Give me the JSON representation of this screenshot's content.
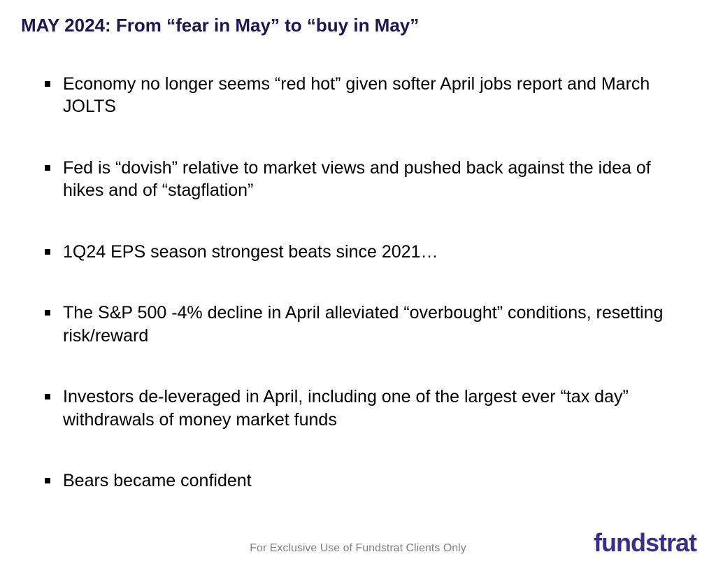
{
  "slide": {
    "title": "MAY 2024: From “fear in May” to “buy in May”",
    "title_color": "#1e1650",
    "title_fontsize": 26,
    "title_fontweight": 700,
    "background_color": "#ffffff",
    "bullets": [
      "Economy no longer seems “red hot” given softer April jobs report and March JOLTS",
      "Fed is “dovish” relative to market views and pushed back against the idea of hikes and of “stagflation”",
      "1Q24 EPS season strongest beats since 2021…",
      "The S&P 500 -4% decline in April alleviated “overbought” conditions, resetting risk/reward",
      "Investors de-leveraged in April, including one of the largest ever “tax day” withdrawals of money market funds",
      "Bears became confident"
    ],
    "bullet_color": "#000000",
    "bullet_fontsize": 25,
    "bullet_marker_size": 8,
    "bullet_marker_color": "#000000",
    "bullet_spacing": 55,
    "footer_text": "For Exclusive Use of Fundstrat Clients Only",
    "footer_color": "#808080",
    "footer_fontsize": 16,
    "logo_text": "fundstrat",
    "logo_color": "#3a2e8c",
    "logo_fontsize": 36
  }
}
